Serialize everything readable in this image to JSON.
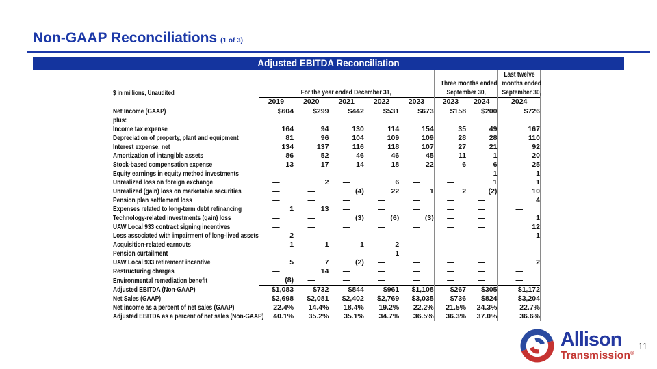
{
  "slide": {
    "title": "Non-GAAP Reconciliations",
    "title_suffix": "(1 of 3)",
    "banner_title": "Adjusted EBITDA Reconciliation",
    "page_number": "11"
  },
  "colors": {
    "title_blue": "#1c39a8",
    "banner_blue": "#14349e",
    "divider_gray": "#8a8a8a",
    "logo_blue": "#2438a0",
    "logo_red": "#c43733"
  },
  "logo": {
    "line1": "Allison",
    "line2": "Transmission",
    "registered": "®",
    "swirl_icon": "allison-swirl"
  },
  "table": {
    "units_label": "$ in millions, Unaudited",
    "year_group_label": "For the year ended December 31,",
    "year_cols": [
      "2019",
      "2020",
      "2021",
      "2022",
      "2023"
    ],
    "quarter_group": {
      "line1": "Three months ended",
      "line2": "September 30,",
      "cols": [
        "2023",
        "2024"
      ]
    },
    "ltm_group": {
      "line1": "Last twelve",
      "line2": "months ended",
      "line3": "September 30,",
      "cols": [
        "2024"
      ]
    },
    "rows": [
      {
        "label": "Net Income (GAAP)",
        "values": [
          "$604",
          "$299",
          "$442",
          "$531",
          "$673",
          "$158",
          "$200",
          "$726"
        ]
      },
      {
        "label": "plus:",
        "values": [
          "",
          "",
          "",
          "",
          "",
          "",
          "",
          ""
        ]
      },
      {
        "label": "Income tax expense",
        "values": [
          "164",
          "94",
          "130",
          "114",
          "154",
          "35",
          "49",
          "167"
        ]
      },
      {
        "label": "Depreciation of property, plant and equipment",
        "values": [
          "81",
          "96",
          "104",
          "109",
          "109",
          "28",
          "28",
          "110"
        ]
      },
      {
        "label": "Interest expense, net",
        "values": [
          "134",
          "137",
          "116",
          "118",
          "107",
          "27",
          "21",
          "92"
        ]
      },
      {
        "label": "Amortization of intangible assets",
        "values": [
          "86",
          "52",
          "46",
          "46",
          "45",
          "11",
          "1",
          "20"
        ]
      },
      {
        "label": "Stock-based compensation expense",
        "values": [
          "13",
          "17",
          "14",
          "18",
          "22",
          "6",
          "6",
          "25"
        ]
      },
      {
        "label": "Equity earnings in equity method investments",
        "values": [
          "—",
          "—",
          "—",
          "—",
          "—",
          "—",
          "1",
          "1"
        ]
      },
      {
        "label": "Unrealized loss on foreign exchange",
        "values": [
          "—",
          "2",
          "—",
          "6",
          "—",
          "—",
          "1",
          "1"
        ]
      },
      {
        "label": "Unrealized (gain) loss on marketable securities",
        "values": [
          "—",
          "—",
          "(4)",
          "22",
          "1",
          "2",
          "(2)",
          "10"
        ]
      },
      {
        "label": "Pension plan settlement loss",
        "values": [
          "—",
          "—",
          "—",
          "—",
          "—",
          "—",
          "—",
          "4"
        ]
      },
      {
        "label": "Expenses related to long-term debt refinancing",
        "values": [
          "1",
          "13",
          "—",
          "—",
          "—",
          "—",
          "—",
          "—"
        ]
      },
      {
        "label": "Technology-related investments (gain) loss",
        "values": [
          "—",
          "—",
          "(3)",
          "(6)",
          "(3)",
          "—",
          "—",
          "1"
        ]
      },
      {
        "label": "UAW Local 933 contract signing incentives",
        "values": [
          "—",
          "—",
          "—",
          "—",
          "—",
          "—",
          "—",
          "12"
        ]
      },
      {
        "label": "Loss associated with impairment of long-lived assets",
        "values": [
          "2",
          "—",
          "—",
          "—",
          "—",
          "—",
          "—",
          "1"
        ]
      },
      {
        "label": "Acquisition-related earnouts",
        "values": [
          "1",
          "1",
          "1",
          "2",
          "—",
          "—",
          "—",
          "—"
        ]
      },
      {
        "label": "Pension curtailment",
        "values": [
          "—",
          "—",
          "—",
          "1",
          "—",
          "—",
          "—",
          "—"
        ]
      },
      {
        "label": "UAW Local 933 retirement incentive",
        "values": [
          "5",
          "7",
          "(2)",
          "—",
          "—",
          "—",
          "—",
          "2"
        ]
      },
      {
        "label": "Restructuring charges",
        "values": [
          "—",
          "14",
          "—",
          "—",
          "—",
          "—",
          "—",
          "—"
        ]
      },
      {
        "label": "Environmental remediation benefit",
        "values": [
          "(8)",
          "—",
          "—",
          "—",
          "—",
          "—",
          "—",
          "—"
        ]
      },
      {
        "label": "Adjusted EBITDA (Non-GAAP)",
        "rule_above": true,
        "values": [
          "$1,083",
          "$732",
          "$844",
          "$961",
          "$1,108",
          "$267",
          "$305",
          "$1,172"
        ]
      },
      {
        "label": "Net Sales (GAAP)",
        "values": [
          "$2,698",
          "$2,081",
          "$2,402",
          "$2,769",
          "$3,035",
          "$736",
          "$824",
          "$3,204"
        ]
      },
      {
        "label": "Net income as a percent of net sales (GAAP)",
        "values": [
          "22.4%",
          "14.4%",
          "18.4%",
          "19.2%",
          "22.2%",
          "21.5%",
          "24.3%",
          "22.7%"
        ]
      },
      {
        "label": "Adjusted EBITDA as a percent of net sales (Non-GAAP)",
        "values": [
          "40.1%",
          "35.2%",
          "35.1%",
          "34.7%",
          "36.5%",
          "36.3%",
          "37.0%",
          "36.6%"
        ]
      }
    ]
  }
}
